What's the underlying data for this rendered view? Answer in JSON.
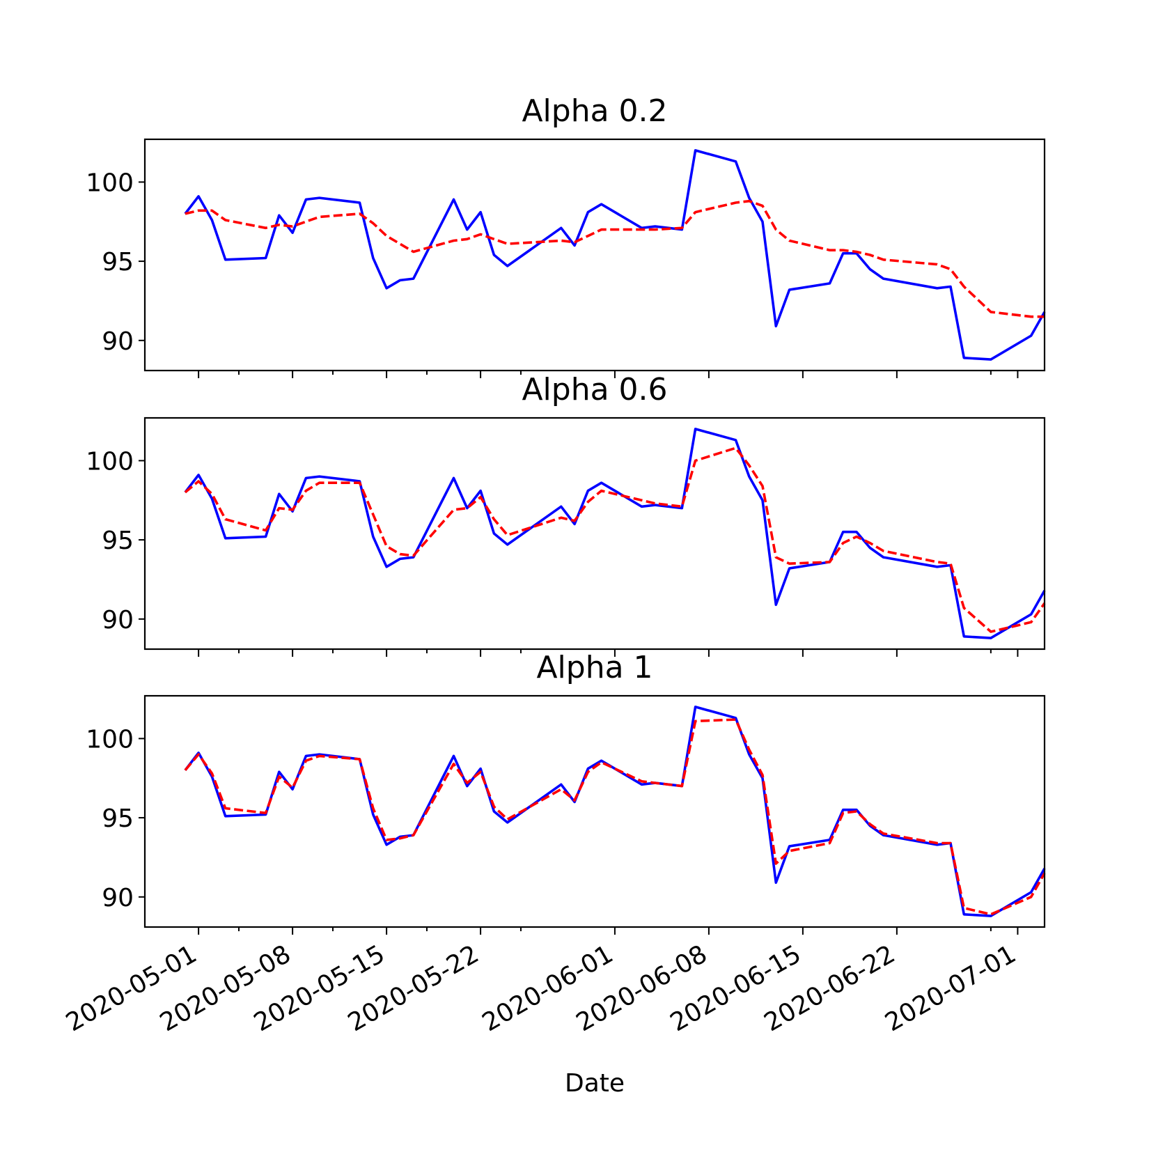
{
  "chart_data": {
    "type": "line",
    "xlabel": "Date",
    "ylabel": "",
    "ylim": [
      88.1,
      102.7
    ],
    "yticks": [
      90,
      95,
      100
    ],
    "xlim": [
      "2020-04-27",
      "2020-07-03"
    ],
    "xticks": [
      "2020-05-01",
      "2020-05-08",
      "2020-05-15",
      "2020-05-22",
      "2020-06-01",
      "2020-06-08",
      "2020-06-15",
      "2020-06-22",
      "2020-07-01"
    ],
    "x": [
      "2020-04-30",
      "2020-05-01",
      "2020-05-02",
      "2020-05-03",
      "2020-05-06",
      "2020-05-07",
      "2020-05-08",
      "2020-05-09",
      "2020-05-10",
      "2020-05-13",
      "2020-05-14",
      "2020-05-15",
      "2020-05-16",
      "2020-05-17",
      "2020-05-20",
      "2020-05-21",
      "2020-05-22",
      "2020-05-23",
      "2020-05-24",
      "2020-05-28",
      "2020-05-29",
      "2020-05-30",
      "2020-05-31",
      "2020-06-03",
      "2020-06-04",
      "2020-06-06",
      "2020-06-07",
      "2020-06-10",
      "2020-06-11",
      "2020-06-12",
      "2020-06-13",
      "2020-06-14",
      "2020-06-17",
      "2020-06-18",
      "2020-06-19",
      "2020-06-20",
      "2020-06-21",
      "2020-06-25",
      "2020-06-26",
      "2020-06-27",
      "2020-06-29",
      "2020-07-02",
      "2020-07-03"
    ],
    "colors": {
      "data": "#0000ff",
      "smoothed": "#ff0000"
    },
    "panels": [
      {
        "title": "Alpha 0.2",
        "series": [
          {
            "style": "solid",
            "color": "#0000ff",
            "values": [
              98.0,
              99.1,
              97.6,
              95.1,
              95.2,
              97.9,
              96.8,
              98.9,
              99.0,
              98.7,
              95.2,
              93.3,
              93.8,
              93.9,
              98.9,
              97.0,
              98.1,
              95.4,
              94.7,
              97.1,
              96.0,
              98.1,
              98.6,
              97.1,
              97.2,
              97.0,
              102.0,
              101.3,
              99.0,
              97.5,
              90.9,
              93.2,
              93.6,
              95.5,
              95.5,
              94.5,
              93.9,
              93.3,
              93.4,
              88.9,
              88.8,
              90.3,
              91.8
            ]
          },
          {
            "style": "dashed",
            "color": "#ff0000",
            "values": [
              98.0,
              98.2,
              98.2,
              97.6,
              97.1,
              97.3,
              97.2,
              97.5,
              97.8,
              98.0,
              97.4,
              96.6,
              96.1,
              95.6,
              96.3,
              96.4,
              96.7,
              96.4,
              96.1,
              96.3,
              96.2,
              96.6,
              97.0,
              97.0,
              97.0,
              97.1,
              98.1,
              98.7,
              98.8,
              98.5,
              97.0,
              96.3,
              95.7,
              95.7,
              95.6,
              95.4,
              95.1,
              94.8,
              94.5,
              93.4,
              91.8,
              91.5,
              91.5
            ]
          }
        ]
      },
      {
        "title": "Alpha 0.6",
        "series": [
          {
            "style": "solid",
            "color": "#0000ff",
            "values": [
              98.0,
              99.1,
              97.6,
              95.1,
              95.2,
              97.9,
              96.8,
              98.9,
              99.0,
              98.7,
              95.2,
              93.3,
              93.8,
              93.9,
              98.9,
              97.0,
              98.1,
              95.4,
              94.7,
              97.1,
              96.0,
              98.1,
              98.6,
              97.1,
              97.2,
              97.0,
              102.0,
              101.3,
              99.0,
              97.5,
              90.9,
              93.2,
              93.6,
              95.5,
              95.5,
              94.5,
              93.9,
              93.3,
              93.4,
              88.9,
              88.8,
              90.3,
              91.8
            ]
          },
          {
            "style": "dashed",
            "color": "#ff0000",
            "values": [
              98.0,
              98.7,
              97.9,
              96.3,
              95.6,
              97.0,
              96.9,
              98.1,
              98.6,
              98.6,
              96.6,
              94.6,
              94.1,
              94.0,
              96.9,
              97.0,
              97.7,
              96.3,
              95.3,
              96.4,
              96.2,
              97.4,
              98.1,
              97.5,
              97.3,
              97.1,
              100.0,
              100.8,
              99.7,
              98.4,
              93.9,
              93.5,
              93.6,
              94.8,
              95.2,
              94.8,
              94.3,
              93.6,
              93.5,
              90.7,
              89.2,
              89.8,
              91.0
            ]
          }
        ]
      },
      {
        "title": "Alpha 1",
        "series": [
          {
            "style": "solid",
            "color": "#0000ff",
            "values": [
              98.0,
              99.1,
              97.6,
              95.1,
              95.2,
              97.9,
              96.8,
              98.9,
              99.0,
              98.7,
              95.2,
              93.3,
              93.8,
              93.9,
              98.9,
              97.0,
              98.1,
              95.4,
              94.7,
              97.1,
              96.0,
              98.1,
              98.6,
              97.1,
              97.2,
              97.0,
              102.0,
              101.3,
              99.0,
              97.5,
              90.9,
              93.2,
              93.6,
              95.5,
              95.5,
              94.5,
              93.9,
              93.3,
              93.4,
              88.9,
              88.8,
              90.3,
              91.8
            ]
          },
          {
            "style": "dashed",
            "color": "#ff0000",
            "values": [
              98.0,
              99.0,
              97.8,
              95.6,
              95.3,
              97.6,
              96.9,
              98.6,
              98.9,
              98.7,
              95.6,
              93.6,
              93.7,
              93.9,
              98.4,
              97.2,
              97.9,
              95.7,
              94.9,
              96.8,
              96.1,
              97.9,
              98.5,
              97.3,
              97.2,
              97.0,
              101.1,
              101.2,
              99.3,
              97.7,
              92.1,
              92.9,
              93.4,
              95.3,
              95.4,
              94.6,
              94.0,
              93.4,
              93.4,
              89.3,
              88.9,
              90.0,
              91.5
            ]
          }
        ]
      }
    ]
  }
}
